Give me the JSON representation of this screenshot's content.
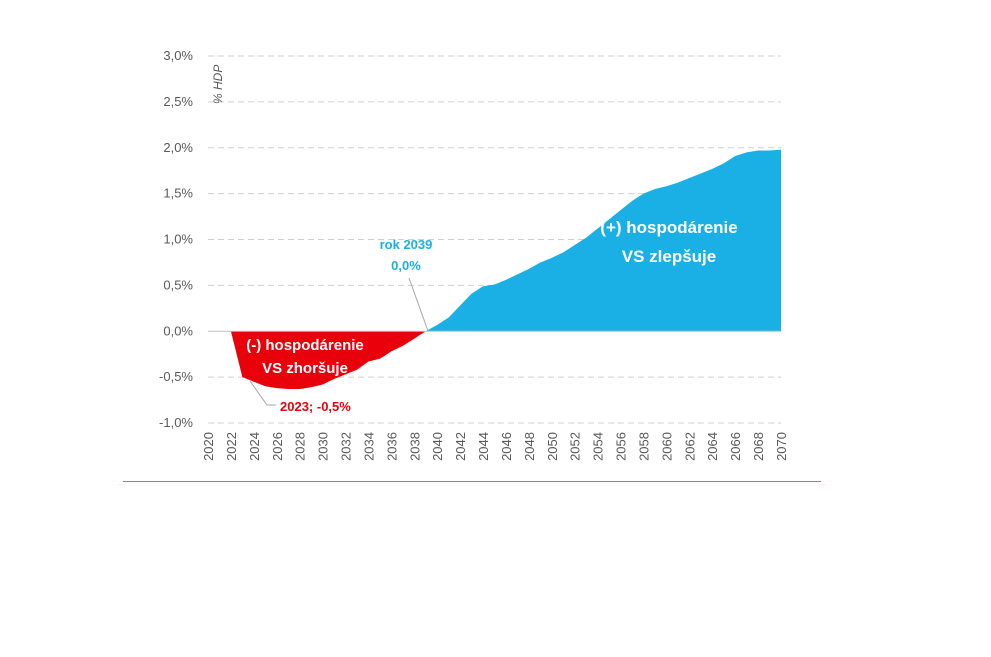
{
  "chart_data": {
    "type": "area",
    "ylabel": "% HDP",
    "ylim": [
      -1.0,
      3.0
    ],
    "yticks": [
      -1.0,
      -0.5,
      0.0,
      0.5,
      1.0,
      1.5,
      2.0,
      2.5,
      3.0
    ],
    "ytick_labels": [
      "-1,0%",
      "-0,5%",
      "0,0%",
      "0,5%",
      "1,0%",
      "1,5%",
      "2,0%",
      "2,5%",
      "3,0%"
    ],
    "xticks": [
      "2020",
      "2022",
      "2024",
      "2026",
      "2028",
      "2030",
      "2032",
      "2034",
      "2036",
      "2038",
      "2040",
      "2042",
      "2044",
      "2046",
      "2048",
      "2050",
      "2052",
      "2054",
      "2056",
      "2058",
      "2060",
      "2062",
      "2064",
      "2066",
      "2068",
      "2070"
    ],
    "grid": true,
    "colors": {
      "positive": "#1ab0e6",
      "negative": "#e8000b"
    },
    "x": [
      2022,
      2023,
      2024,
      2025,
      2026,
      2027,
      2028,
      2029,
      2030,
      2031,
      2032,
      2033,
      2034,
      2035,
      2036,
      2037,
      2038,
      2039,
      2040,
      2041,
      2042,
      2043,
      2044,
      2045,
      2046,
      2047,
      2048,
      2049,
      2050,
      2051,
      2052,
      2053,
      2054,
      2055,
      2056,
      2057,
      2058,
      2059,
      2060,
      2061,
      2062,
      2063,
      2064,
      2065,
      2066,
      2067,
      2068,
      2069,
      2070
    ],
    "values": [
      0.0,
      -0.5,
      -0.55,
      -0.6,
      -0.62,
      -0.63,
      -0.63,
      -0.61,
      -0.58,
      -0.52,
      -0.47,
      -0.42,
      -0.33,
      -0.3,
      -0.22,
      -0.16,
      -0.08,
      0.0,
      0.07,
      0.15,
      0.28,
      0.41,
      0.49,
      0.51,
      0.56,
      0.62,
      0.68,
      0.75,
      0.8,
      0.86,
      0.94,
      1.02,
      1.12,
      1.22,
      1.32,
      1.42,
      1.5,
      1.55,
      1.58,
      1.62,
      1.67,
      1.72,
      1.77,
      1.83,
      1.91,
      1.95,
      1.97,
      1.97,
      1.98
    ],
    "annotations": {
      "negative_area_line1": "(-) hospodárenie",
      "negative_area_line2": "VS zhoršuje",
      "positive_area_line1": "(+) hospodárenie",
      "positive_area_line2": "VS zlepšuje",
      "crossing_line1": "rok 2039",
      "crossing_line2": "0,0%",
      "minimum_label": "2023; -0,5%"
    }
  }
}
